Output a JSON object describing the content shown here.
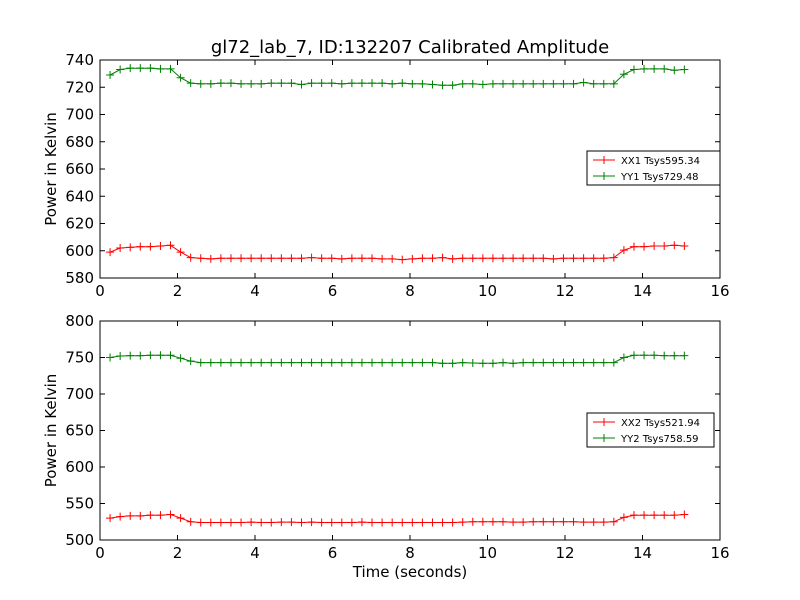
{
  "title": "gl72_lab_7, ID:132207 Calibrated Amplitude",
  "colors": {
    "red": "#ff0000",
    "green": "#008000"
  },
  "chart_data": [
    {
      "type": "line",
      "xlabel": "",
      "ylabel": "Power in Kelvin",
      "xlim": [
        0,
        16
      ],
      "ylim": [
        580,
        740
      ],
      "xticks": [
        "0",
        "2",
        "4",
        "6",
        "8",
        "10",
        "12",
        "14",
        "16"
      ],
      "yticks": [
        "580",
        "600",
        "620",
        "640",
        "660",
        "680",
        "700",
        "720",
        "740"
      ],
      "grid": false,
      "legend_position": "center-right",
      "x": [
        0.26,
        0.52,
        0.78,
        1.04,
        1.3,
        1.56,
        1.82,
        2.08,
        2.34,
        2.6,
        2.86,
        3.12,
        3.38,
        3.64,
        3.9,
        4.16,
        4.42,
        4.68,
        4.94,
        5.2,
        5.46,
        5.72,
        5.98,
        6.24,
        6.5,
        6.76,
        7.02,
        7.28,
        7.54,
        7.8,
        8.06,
        8.32,
        8.58,
        8.84,
        9.1,
        9.36,
        9.62,
        9.88,
        10.14,
        10.4,
        10.66,
        10.92,
        11.18,
        11.44,
        11.7,
        11.96,
        12.22,
        12.48,
        12.74,
        13.0,
        13.26,
        13.52,
        13.78,
        14.04,
        14.3,
        14.56,
        14.82,
        15.08
      ],
      "series": [
        {
          "name": "XX1 Tsys595.34",
          "color": "#ff0000",
          "values": [
            599,
            602,
            602.5,
            603,
            603,
            603.5,
            604,
            599,
            595,
            594.5,
            594,
            594.5,
            594.5,
            594.5,
            594.5,
            594.5,
            594.5,
            594.5,
            594.5,
            594.5,
            595,
            594.5,
            594.5,
            594,
            594.5,
            594.5,
            594.5,
            594,
            594,
            593.5,
            594,
            594.5,
            594.5,
            595,
            594,
            594.5,
            594.5,
            594.5,
            594.5,
            594.5,
            594.5,
            594.5,
            594.5,
            594.5,
            594,
            594.5,
            594.5,
            594.5,
            594.5,
            594.5,
            595,
            600.5,
            603,
            603,
            603.5,
            603.5,
            604,
            603.5
          ]
        },
        {
          "name": "YY1 Tsys729.48",
          "color": "#008000",
          "values": [
            729,
            733,
            734,
            734,
            734,
            733.5,
            733.5,
            727,
            723,
            722.5,
            722.5,
            723,
            723,
            722.5,
            722.5,
            722.5,
            723,
            723,
            723,
            722,
            723,
            723,
            723,
            722.5,
            723,
            723,
            723,
            723,
            722.5,
            723,
            722.5,
            722.5,
            722,
            721.5,
            721.5,
            722.5,
            722.5,
            722,
            722.5,
            722.5,
            722.5,
            722.5,
            722.5,
            722.5,
            722.5,
            722.5,
            722.5,
            723.5,
            722.5,
            722.5,
            722.5,
            729.5,
            733,
            733.5,
            733.5,
            733.5,
            732.5,
            733
          ]
        }
      ]
    },
    {
      "type": "line",
      "xlabel": "Time (seconds)",
      "ylabel": "Power in Kelvin",
      "xlim": [
        0,
        16
      ],
      "ylim": [
        500,
        800
      ],
      "xticks": [
        "0",
        "2",
        "4",
        "6",
        "8",
        "10",
        "12",
        "14",
        "16"
      ],
      "yticks": [
        "500",
        "550",
        "600",
        "650",
        "700",
        "750",
        "800"
      ],
      "grid": false,
      "legend_position": "center-right",
      "x": [
        0.26,
        0.52,
        0.78,
        1.04,
        1.3,
        1.56,
        1.82,
        2.08,
        2.34,
        2.6,
        2.86,
        3.12,
        3.38,
        3.64,
        3.9,
        4.16,
        4.42,
        4.68,
        4.94,
        5.2,
        5.46,
        5.72,
        5.98,
        6.24,
        6.5,
        6.76,
        7.02,
        7.28,
        7.54,
        7.8,
        8.06,
        8.32,
        8.58,
        8.84,
        9.1,
        9.36,
        9.62,
        9.88,
        10.14,
        10.4,
        10.66,
        10.92,
        11.18,
        11.44,
        11.7,
        11.96,
        12.22,
        12.48,
        12.74,
        13.0,
        13.26,
        13.52,
        13.78,
        14.04,
        14.3,
        14.56,
        14.82,
        15.08
      ],
      "series": [
        {
          "name": "XX2 Tsys521.94",
          "color": "#ff0000",
          "values": [
            530,
            532,
            533,
            533,
            534,
            534,
            535,
            530,
            525,
            524,
            524,
            524,
            524,
            524,
            524.5,
            524,
            524,
            524.5,
            524.5,
            524,
            524.5,
            524,
            524,
            524,
            524,
            524.5,
            524,
            524,
            524,
            524,
            524,
            524,
            524,
            524,
            524,
            524.5,
            525,
            525,
            525,
            525,
            524.5,
            524.5,
            525,
            525,
            525,
            525,
            525,
            524.5,
            524.5,
            524.5,
            525,
            531,
            534,
            534,
            534,
            534,
            534,
            535
          ]
        },
        {
          "name": "YY2 Tsys758.59",
          "color": "#008000",
          "values": [
            750,
            752,
            752.5,
            752.5,
            753,
            753,
            753,
            749,
            745,
            743,
            743,
            743,
            743,
            743,
            743,
            743,
            743,
            743,
            743,
            743,
            743,
            743,
            743,
            743,
            743,
            743,
            743,
            743,
            743,
            743,
            743,
            743,
            743,
            742,
            742,
            743,
            742.5,
            742,
            742,
            743,
            742,
            743,
            743,
            743,
            743,
            743,
            743,
            743,
            743,
            743,
            743,
            750,
            753,
            753,
            753,
            752.5,
            752.5,
            752.5
          ]
        }
      ]
    }
  ]
}
